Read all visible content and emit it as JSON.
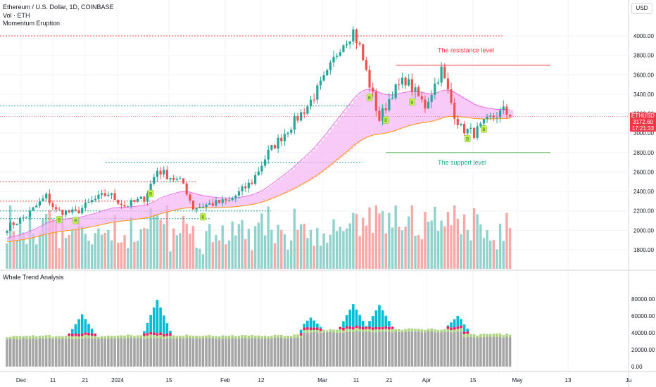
{
  "header": {
    "title": "Ethereum / U.S. Dollar, 1D, COINBASE",
    "indicator_vol": "Vol · ETH",
    "indicator_2": "Momentum Eruption"
  },
  "lower_pane_title": "Whale Trend Analysis",
  "currency_label": "USD",
  "price_tag": {
    "symbol": "ETHUSD",
    "price": "3172.60",
    "countdown": "17:21:33"
  },
  "annotations": {
    "resistance_label": "The resistance level",
    "support_label": "The support level",
    "resistance_price": 3700,
    "support_price": 2800
  },
  "colors": {
    "up": "#26a69a",
    "down": "#ef5350",
    "band": "#e96ee6",
    "band_fill": "#f5b3f3",
    "orange": "#ff9800",
    "resist": "#f23645",
    "support": "#4caf50",
    "whale_gray": "#a5a5a5",
    "whale_cyan": "#00bcd4",
    "whale_red": "#e91e63",
    "whale_green": "#aed581",
    "label_red": "#f23645",
    "label_green": "#22ab94"
  },
  "chart_data": [
    {
      "type": "candlestick",
      "title": "Ethereum / U.S. Dollar, 1D, COINBASE",
      "x_ticks": [
        "Dec",
        "11",
        "21",
        "2024",
        "15",
        "Feb",
        "12",
        "Mar",
        "11",
        "21",
        "Apr",
        "15",
        "May",
        "13",
        "Ju"
      ],
      "y_ticks": [
        1800,
        2000,
        2200,
        2400,
        2600,
        2800,
        3000,
        3200,
        3400,
        3600,
        3800,
        4000
      ],
      "ylim": [
        1600,
        4200
      ],
      "start_date": "2023-11-27",
      "anchors": [
        [
          "2023-11-27",
          2030
        ],
        [
          "2023-12-03",
          2150
        ],
        [
          "2023-12-09",
          2350
        ],
        [
          "2023-12-12",
          2200
        ],
        [
          "2023-12-18",
          2180
        ],
        [
          "2023-12-23",
          2300
        ],
        [
          "2023-12-28",
          2380
        ],
        [
          "2024-01-02",
          2250
        ],
        [
          "2024-01-08",
          2330
        ],
        [
          "2024-01-12",
          2620
        ],
        [
          "2024-01-16",
          2550
        ],
        [
          "2024-01-20",
          2480
        ],
        [
          "2024-01-23",
          2230
        ],
        [
          "2024-01-28",
          2270
        ],
        [
          "2024-02-03",
          2300
        ],
        [
          "2024-02-10",
          2500
        ],
        [
          "2024-02-15",
          2800
        ],
        [
          "2024-02-20",
          3000
        ],
        [
          "2024-02-27",
          3280
        ],
        [
          "2024-03-04",
          3600
        ],
        [
          "2024-03-08",
          3900
        ],
        [
          "2024-03-12",
          4050
        ],
        [
          "2024-03-14",
          3880
        ],
        [
          "2024-03-17",
          3500
        ],
        [
          "2024-03-20",
          3140
        ],
        [
          "2024-03-24",
          3420
        ],
        [
          "2024-03-28",
          3550
        ],
        [
          "2024-04-03",
          3280
        ],
        [
          "2024-04-08",
          3650
        ],
        [
          "2024-04-12",
          3200
        ],
        [
          "2024-04-14",
          3050
        ],
        [
          "2024-04-18",
          3000
        ],
        [
          "2024-04-23",
          3150
        ],
        [
          "2024-04-27",
          3230
        ],
        [
          "2024-04-29",
          3172
        ]
      ],
      "dotted_levels": [
        {
          "price": 4000,
          "color": "red"
        },
        {
          "price": 3280,
          "color": "green"
        },
        {
          "price": 2700,
          "color": "green"
        },
        {
          "price": 2500,
          "color": "red"
        },
        {
          "price": 2300,
          "color": "red"
        },
        {
          "price": 2200,
          "color": "green"
        },
        {
          "price": 2120,
          "color": "green"
        }
      ],
      "signals": [
        {
          "date": "2023-12-13",
          "text": "B"
        },
        {
          "date": "2023-12-18",
          "text": "B"
        },
        {
          "date": "2024-01-10",
          "text": "B"
        },
        {
          "date": "2024-01-26",
          "text": "B"
        },
        {
          "date": "2024-03-17",
          "text": "B"
        },
        {
          "date": "2024-03-22",
          "text": "B"
        },
        {
          "date": "2024-03-30",
          "text": "B"
        },
        {
          "date": "2024-04-16",
          "text": "B"
        },
        {
          "date": "2024-04-21",
          "text": "B"
        }
      ]
    },
    {
      "type": "bar",
      "title": "Whale Trend Analysis",
      "y_ticks": [
        0,
        20000,
        40000,
        60000,
        80000
      ],
      "ylim": [
        -8000,
        86000
      ],
      "spikes": [
        {
          "date": "2023-12-20",
          "value": 62000
        },
        {
          "date": "2024-01-12",
          "value": 79000
        },
        {
          "date": "2024-02-28",
          "value": 58000
        },
        {
          "date": "2024-03-12",
          "value": 74000
        },
        {
          "date": "2024-03-20",
          "value": 73000
        },
        {
          "date": "2024-04-13",
          "value": 60000
        }
      ]
    }
  ]
}
